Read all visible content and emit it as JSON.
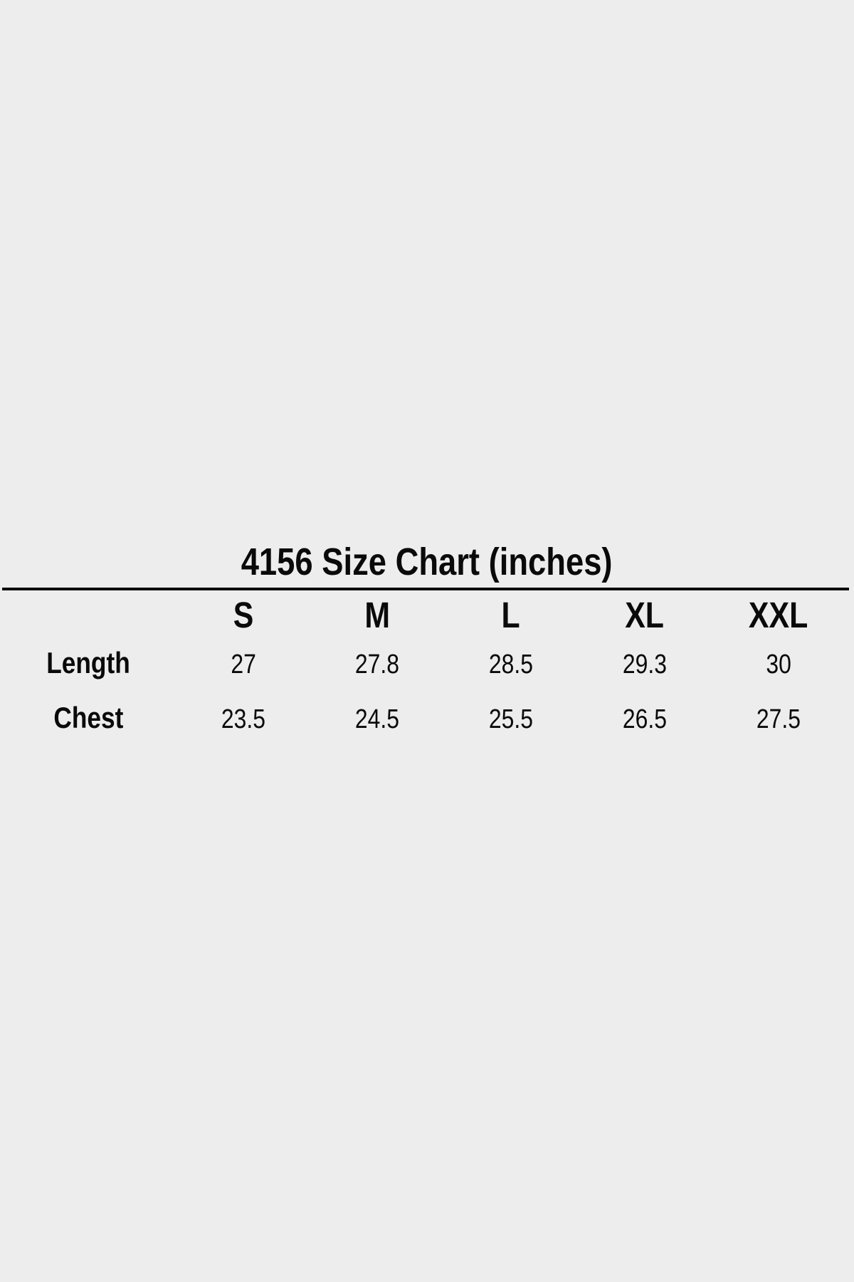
{
  "page": {
    "background_color": "#ededed",
    "text_color": "#0a0a0a",
    "rule_color": "#0c0c0c"
  },
  "size_chart": {
    "title": "4156 Size Chart (inches)",
    "columns": [
      "S",
      "M",
      "L",
      "XL",
      "XXL"
    ],
    "rows": [
      {
        "label": "Length",
        "values": [
          "27",
          "27.8",
          "28.5",
          "29.3",
          "30"
        ]
      },
      {
        "label": "Chest",
        "values": [
          "23.5",
          "24.5",
          "25.5",
          "26.5",
          "27.5"
        ]
      }
    ]
  },
  "chart_data": {
    "type": "table",
    "title": "4156 Size Chart (inches)",
    "unit": "inches",
    "columns": [
      "S",
      "M",
      "L",
      "XL",
      "XXL"
    ],
    "rows": [
      {
        "label": "Length",
        "values": [
          27,
          27.8,
          28.5,
          29.3,
          30
        ]
      },
      {
        "label": "Chest",
        "values": [
          23.5,
          24.5,
          25.5,
          26.5,
          27.5
        ]
      }
    ]
  }
}
